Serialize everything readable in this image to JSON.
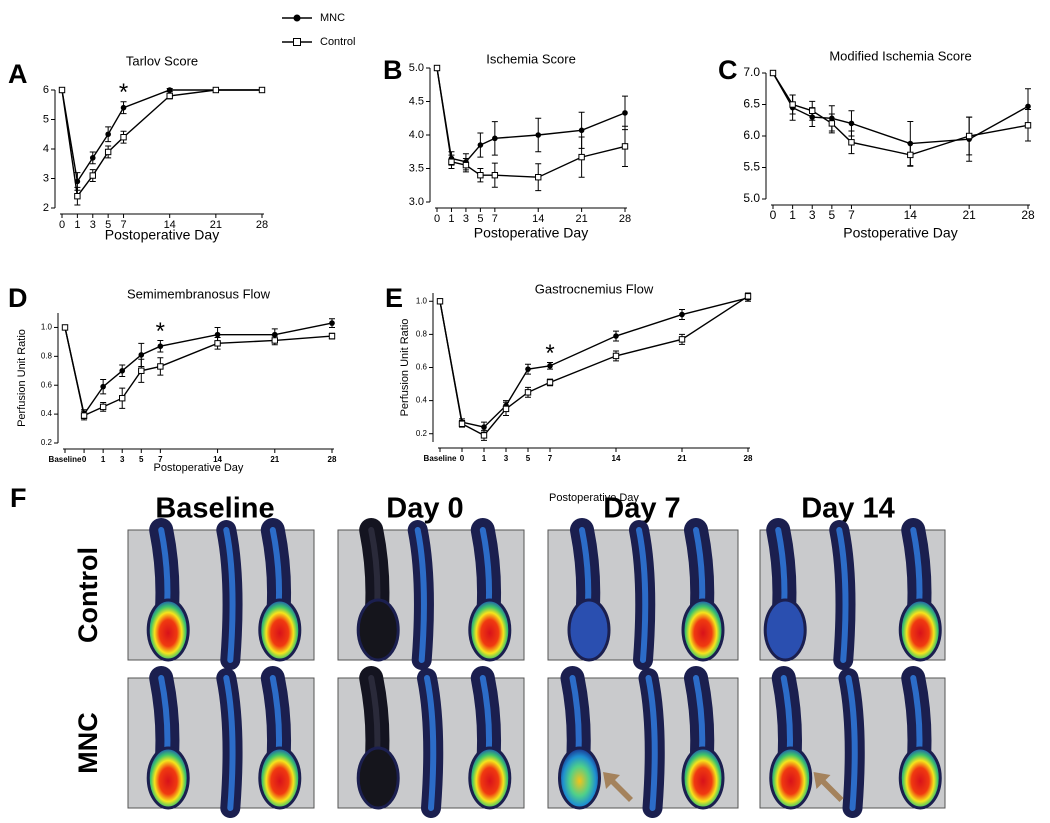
{
  "chart_data": [
    {
      "type": "line",
      "panel_label": "A",
      "title": "Tarlov Score",
      "x_label": "Postoperative Day",
      "categories": [
        "0",
        "1",
        "3",
        "5",
        "7",
        "14",
        "21",
        "28"
      ],
      "ylim": [
        2,
        6
      ],
      "yticks": [
        2,
        3,
        4,
        5,
        6
      ],
      "series": [
        {
          "name": "MNC",
          "color": "#000000",
          "marker": "circle",
          "values": [
            6,
            2.9,
            3.7,
            4.5,
            5.4,
            6.0,
            6.0,
            6.0
          ],
          "errors": [
            0,
            0.3,
            0.2,
            0.25,
            0.2,
            0.05,
            0,
            0
          ]
        },
        {
          "name": "Control",
          "color": "#000000",
          "marker": "open-square",
          "values": [
            6,
            2.4,
            3.1,
            3.9,
            4.4,
            5.8,
            6.0,
            6.0
          ],
          "errors": [
            0,
            0.3,
            0.2,
            0.2,
            0.2,
            0.1,
            0,
            0
          ]
        }
      ],
      "annotations": [
        {
          "text": "*",
          "x": "7"
        }
      ]
    },
    {
      "type": "line",
      "panel_label": "B",
      "title": "Ischemia Score",
      "x_label": "Postoperative  Day",
      "categories": [
        "0",
        "1",
        "3",
        "5",
        "7",
        "14",
        "21",
        "28"
      ],
      "ylim": [
        3,
        5
      ],
      "yticks": [
        {
          "value": 3,
          "label": "3.0"
        },
        3.5,
        {
          "value": 4,
          "label": "4.0"
        },
        4.5,
        {
          "value": 5,
          "label": "5.0"
        }
      ],
      "series": [
        {
          "color": "#000000",
          "marker": "circle",
          "values": [
            5.0,
            3.65,
            3.6,
            3.85,
            3.95,
            4.0,
            4.07,
            4.33
          ],
          "errors": [
            0,
            0.1,
            0.12,
            0.18,
            0.25,
            0.25,
            0.27,
            0.25
          ]
        },
        {
          "color": "#000000",
          "marker": "open-square",
          "values": [
            5.0,
            3.6,
            3.55,
            3.4,
            3.4,
            3.37,
            3.67,
            3.83
          ],
          "errors": [
            0,
            0.1,
            0.1,
            0.1,
            0.18,
            0.2,
            0.3,
            0.3
          ]
        }
      ]
    },
    {
      "type": "line",
      "panel_label": "C",
      "title": "Modified Ischemia Score",
      "x_label": "Postoperative  Day",
      "categories": [
        "0",
        "1",
        "3",
        "5",
        "7",
        "14",
        "21",
        "28"
      ],
      "ylim": [
        5,
        7
      ],
      "yticks": [
        {
          "value": 5,
          "label": "5.0"
        },
        5.5,
        {
          "value": 6,
          "label": "6.0"
        },
        6.5,
        {
          "value": 7,
          "label": "7.0"
        }
      ],
      "series": [
        {
          "color": "#000000",
          "marker": "circle",
          "values": [
            7.0,
            6.45,
            6.3,
            6.28,
            6.2,
            5.88,
            5.95,
            6.47
          ],
          "errors": [
            0,
            0.2,
            0.15,
            0.2,
            0.2,
            0.35,
            0.35,
            0.28
          ]
        },
        {
          "color": "#000000",
          "marker": "open-square",
          "values": [
            7.0,
            6.5,
            6.4,
            6.2,
            5.9,
            5.7,
            6.0,
            6.17
          ],
          "errors": [
            0,
            0.15,
            0.15,
            0.15,
            0.18,
            0.18,
            0.3,
            0.25
          ]
        }
      ]
    },
    {
      "type": "line",
      "panel_label": "D",
      "title": "Semimembranosus Flow",
      "x_label": "Postoperative  Day",
      "y_label": "Perfusion Unit Ratio",
      "categories": [
        "Baseline",
        "0",
        "1",
        "3",
        "5",
        "7",
        "14",
        "21",
        "28"
      ],
      "ylim": [
        0.2,
        1.1
      ],
      "yticks": [
        0.2,
        0.4,
        0.6,
        0.8,
        {
          "value": 1,
          "label": "1.0"
        }
      ],
      "series": [
        {
          "color": "#000000",
          "marker": "circle",
          "values": [
            1.0,
            0.4,
            0.59,
            0.7,
            0.81,
            0.87,
            0.95,
            0.95,
            1.03
          ],
          "errors": [
            0,
            0.03,
            0.05,
            0.04,
            0.08,
            0.04,
            0.05,
            0.04,
            0.03
          ]
        },
        {
          "color": "#000000",
          "marker": "open-square",
          "values": [
            1.0,
            0.39,
            0.45,
            0.51,
            0.7,
            0.73,
            0.89,
            0.91,
            0.94
          ],
          "errors": [
            0,
            0.03,
            0.03,
            0.07,
            0.08,
            0.06,
            0.04,
            0.03,
            0.02
          ]
        }
      ],
      "annotations": [
        {
          "text": "*",
          "x": "7"
        }
      ]
    },
    {
      "type": "line",
      "panel_label": "E",
      "title": "Gastrocnemius Flow",
      "x_label": "Postoperative  Day",
      "y_label": "Perfusion Unit Ratio",
      "categories": [
        "Baseline",
        "0",
        "1",
        "3",
        "5",
        "7",
        "14",
        "21",
        "28"
      ],
      "ylim": [
        0.15,
        1.05
      ],
      "yticks": [
        0.2,
        0.4,
        0.6,
        0.8,
        {
          "value": 1,
          "label": "1.0"
        }
      ],
      "series": [
        {
          "color": "#000000",
          "marker": "circle",
          "values": [
            1.0,
            0.27,
            0.24,
            0.37,
            0.59,
            0.61,
            0.79,
            0.92,
            1.02
          ],
          "errors": [
            0,
            0.02,
            0.03,
            0.03,
            0.03,
            0.02,
            0.03,
            0.03,
            0.02
          ]
        },
        {
          "color": "#000000",
          "marker": "open-square",
          "values": [
            1.0,
            0.26,
            0.19,
            0.35,
            0.45,
            0.51,
            0.67,
            0.77,
            1.03
          ],
          "errors": [
            0,
            0.02,
            0.03,
            0.04,
            0.03,
            0.02,
            0.03,
            0.03,
            0.02
          ]
        }
      ],
      "annotations": [
        {
          "text": "*",
          "x": "7"
        }
      ]
    }
  ],
  "panel_f": {
    "label": "F",
    "columns": [
      "Baseline",
      "Day 0",
      "Day 7",
      "Day 14"
    ],
    "rows": [
      "Control",
      "MNC"
    ]
  }
}
